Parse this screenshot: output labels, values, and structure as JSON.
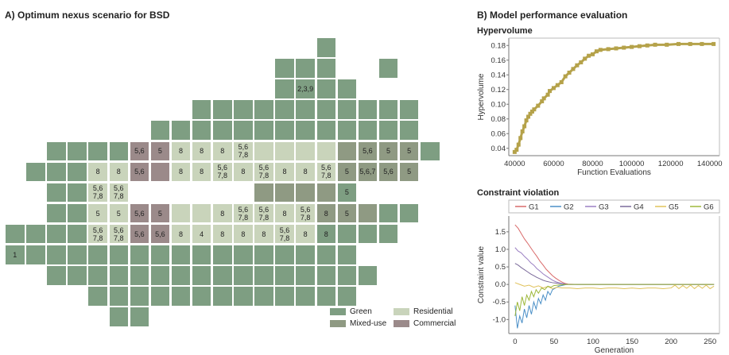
{
  "panel_a": {
    "title": "A) Optimum nexus scenario for BSD",
    "legend": [
      {
        "key": "G",
        "label": "Green",
        "color": "#7e9e82"
      },
      {
        "key": "R",
        "label": "Residential",
        "color": "#c9d4bb"
      },
      {
        "key": "M",
        "label": "Mixed-use",
        "color": "#8f9a83"
      },
      {
        "key": "C",
        "label": "Commercial",
        "color": "#9b8a8a"
      }
    ],
    "map_rows": [
      "...............G....",
      ".............GGG..G.",
      ".............GGGG...",
      ".........GGGGGGGGGGG",
      ".......GGGGGGGGGGGGG",
      "..GGGGCCRRRRRRRRMMMMG",
      ".GGGRRCCRRRRRRRRMMMM.",
      "..GGRR......MMMMG....",
      "..GGRRCCRRRRRRRMMMGG.",
      "GGGGRRCCRRRRRRRGGGG..",
      "GGGGGGGGGGGGGGGGG....",
      "..GGGGGGGGGGGGGGGG...",
      "....GGGGGGGGGGGGG....",
      ".....GG.............."
    ],
    "labels": [
      {
        "r": 2,
        "c": 14,
        "t": "2,3,9"
      },
      {
        "r": 5,
        "c": 6,
        "t": "5,6"
      },
      {
        "r": 5,
        "c": 7,
        "t": "5"
      },
      {
        "r": 5,
        "c": 8,
        "t": "8"
      },
      {
        "r": 5,
        "c": 9,
        "t": "8"
      },
      {
        "r": 5,
        "c": 10,
        "t": "8"
      },
      {
        "r": 5,
        "c": 11,
        "t": "5,6\n7,8"
      },
      {
        "r": 5,
        "c": 17,
        "t": "5,6"
      },
      {
        "r": 5,
        "c": 18,
        "t": "5"
      },
      {
        "r": 5,
        "c": 19,
        "t": "5"
      },
      {
        "r": 6,
        "c": 4,
        "t": "8"
      },
      {
        "r": 6,
        "c": 5,
        "t": "8"
      },
      {
        "r": 6,
        "c": 6,
        "t": "5,6"
      },
      {
        "r": 6,
        "c": 8,
        "t": "8"
      },
      {
        "r": 6,
        "c": 9,
        "t": "8"
      },
      {
        "r": 6,
        "c": 10,
        "t": "5,6\n7,8"
      },
      {
        "r": 6,
        "c": 11,
        "t": "8"
      },
      {
        "r": 6,
        "c": 12,
        "t": "5,6\n7,8"
      },
      {
        "r": 6,
        "c": 13,
        "t": "8"
      },
      {
        "r": 6,
        "c": 14,
        "t": "8"
      },
      {
        "r": 6,
        "c": 15,
        "t": "5,6\n7,8"
      },
      {
        "r": 6,
        "c": 16,
        "t": "5"
      },
      {
        "r": 6,
        "c": 17,
        "t": "5,6,7"
      },
      {
        "r": 6,
        "c": 18,
        "t": "5,6"
      },
      {
        "r": 6,
        "c": 19,
        "t": "5"
      },
      {
        "r": 7,
        "c": 4,
        "t": "5,6\n7,8"
      },
      {
        "r": 7,
        "c": 5,
        "t": "5,6\n7,8"
      },
      {
        "r": 7,
        "c": 16,
        "t": "5"
      },
      {
        "r": 7,
        "c": 17,
        "t": "5,6"
      },
      {
        "r": 7,
        "c": 18,
        "t": "5"
      },
      {
        "r": 8,
        "c": 4,
        "t": "5"
      },
      {
        "r": 8,
        "c": 5,
        "t": "5"
      },
      {
        "r": 8,
        "c": 6,
        "t": "5,6"
      },
      {
        "r": 8,
        "c": 7,
        "t": "5"
      },
      {
        "r": 8,
        "c": 10,
        "t": "8"
      },
      {
        "r": 8,
        "c": 11,
        "t": "5,6\n7,8"
      },
      {
        "r": 8,
        "c": 12,
        "t": "5,6\n7,8"
      },
      {
        "r": 8,
        "c": 13,
        "t": "8"
      },
      {
        "r": 8,
        "c": 14,
        "t": "5,6\n7,8"
      },
      {
        "r": 8,
        "c": 15,
        "t": "8"
      },
      {
        "r": 8,
        "c": 16,
        "t": "5"
      },
      {
        "r": 9,
        "c": 4,
        "t": "5,6\n7,8"
      },
      {
        "r": 9,
        "c": 5,
        "t": "5,6\n7,8"
      },
      {
        "r": 9,
        "c": 6,
        "t": "5,6"
      },
      {
        "r": 9,
        "c": 7,
        "t": "5,6"
      },
      {
        "r": 9,
        "c": 8,
        "t": "8"
      },
      {
        "r": 9,
        "c": 9,
        "t": "4"
      },
      {
        "r": 9,
        "c": 10,
        "t": "8"
      },
      {
        "r": 9,
        "c": 11,
        "t": "8"
      },
      {
        "r": 9,
        "c": 12,
        "t": "8"
      },
      {
        "r": 9,
        "c": 13,
        "t": "5,6\n7,8"
      },
      {
        "r": 9,
        "c": 14,
        "t": "8"
      },
      {
        "r": 9,
        "c": 15,
        "t": "8"
      },
      {
        "r": 10,
        "c": 0,
        "t": "1"
      }
    ]
  },
  "panel_b": {
    "title": "B) Model performance evaluation"
  },
  "chart_data": [
    {
      "type": "scatter",
      "title": "Hypervolume",
      "xlabel": "Function Evaluations",
      "ylabel": "Hypervolume",
      "xlim": [
        37000,
        145000
      ],
      "ylim": [
        0.03,
        0.19
      ],
      "xticks": [
        40000,
        60000,
        80000,
        100000,
        120000,
        140000
      ],
      "yticks": [
        0.04,
        0.06,
        0.08,
        0.1,
        0.12,
        0.14,
        0.16,
        0.18
      ],
      "color": "#b5a24a",
      "series": [
        {
          "points": [
            [
              40000,
              0.035
            ],
            [
              41000,
              0.038
            ],
            [
              42000,
              0.045
            ],
            [
              43000,
              0.054
            ],
            [
              44000,
              0.063
            ],
            [
              45000,
              0.07
            ],
            [
              46000,
              0.078
            ],
            [
              47000,
              0.083
            ],
            [
              48000,
              0.087
            ],
            [
              49000,
              0.09
            ],
            [
              50000,
              0.093
            ],
            [
              52000,
              0.098
            ],
            [
              54000,
              0.104
            ],
            [
              55000,
              0.108
            ],
            [
              57000,
              0.113
            ],
            [
              58000,
              0.118
            ],
            [
              60000,
              0.122
            ],
            [
              62000,
              0.126
            ],
            [
              64000,
              0.13
            ],
            [
              66000,
              0.138
            ],
            [
              68000,
              0.143
            ],
            [
              70000,
              0.148
            ],
            [
              72000,
              0.153
            ],
            [
              74000,
              0.157
            ],
            [
              76000,
              0.162
            ],
            [
              78000,
              0.166
            ],
            [
              80000,
              0.168
            ],
            [
              82000,
              0.172
            ],
            [
              84000,
              0.174
            ],
            [
              88000,
              0.175
            ],
            [
              92000,
              0.176
            ],
            [
              96000,
              0.177
            ],
            [
              100000,
              0.178
            ],
            [
              104000,
              0.179
            ],
            [
              108000,
              0.18
            ],
            [
              112000,
              0.181
            ],
            [
              118000,
              0.181
            ],
            [
              124000,
              0.182
            ],
            [
              130000,
              0.182
            ],
            [
              136000,
              0.182
            ],
            [
              142000,
              0.182
            ]
          ]
        }
      ]
    },
    {
      "type": "line",
      "title": "Constraint violation",
      "xlabel": "Generation",
      "ylabel": "Constraint value",
      "xlim": [
        -8,
        262
      ],
      "ylim": [
        -1.4,
        1.95
      ],
      "xticks": [
        0,
        50,
        100,
        150,
        200,
        250
      ],
      "yticks": [
        -1.0,
        -0.5,
        0.0,
        0.5,
        1.0,
        1.5
      ],
      "legend_position": "top",
      "series": [
        {
          "name": "G1",
          "color": "#d96a6a",
          "x": [
            0,
            4,
            8,
            12,
            16,
            20,
            24,
            28,
            32,
            36,
            40,
            44,
            48,
            52,
            56,
            60,
            64,
            68,
            80,
            120,
            160,
            200,
            255
          ],
          "y": [
            1.7,
            1.6,
            1.45,
            1.3,
            1.18,
            1.05,
            0.92,
            0.8,
            0.66,
            0.55,
            0.43,
            0.34,
            0.25,
            0.18,
            0.12,
            0.07,
            0.03,
            0.01,
            0.0,
            0.0,
            0.0,
            0.0,
            0.0
          ]
        },
        {
          "name": "G2",
          "color": "#4a8fc7",
          "x": [
            0,
            3,
            6,
            9,
            12,
            15,
            18,
            21,
            24,
            27,
            30,
            33,
            36,
            39,
            42,
            45,
            48,
            52,
            56,
            60,
            66,
            80,
            120,
            160,
            200,
            255
          ],
          "y": [
            -0.6,
            -1.25,
            -0.9,
            -1.1,
            -0.7,
            -0.95,
            -0.6,
            -0.85,
            -0.5,
            -0.7,
            -0.4,
            -0.55,
            -0.3,
            -0.45,
            -0.2,
            -0.3,
            -0.15,
            -0.1,
            -0.05,
            -0.03,
            0.0,
            0.0,
            0.0,
            0.0,
            0.0,
            0.0
          ]
        },
        {
          "name": "G3",
          "color": "#9a7fc2",
          "x": [
            0,
            4,
            8,
            12,
            16,
            20,
            24,
            28,
            32,
            36,
            40,
            44,
            48,
            52,
            56,
            60,
            66,
            80,
            120,
            160,
            200,
            255
          ],
          "y": [
            1.05,
            0.95,
            0.9,
            0.8,
            0.72,
            0.62,
            0.55,
            0.45,
            0.38,
            0.3,
            0.24,
            0.18,
            0.12,
            0.08,
            0.05,
            0.03,
            0.0,
            0.0,
            0.0,
            0.0,
            0.0,
            0.0
          ]
        },
        {
          "name": "G4",
          "color": "#7b6a9a",
          "x": [
            0,
            4,
            8,
            12,
            16,
            20,
            24,
            28,
            32,
            36,
            40,
            44,
            48,
            52,
            56,
            60,
            64,
            70,
            80,
            120,
            160,
            200,
            255
          ],
          "y": [
            0.6,
            0.55,
            0.48,
            0.42,
            0.36,
            0.3,
            0.25,
            0.2,
            0.16,
            0.12,
            0.09,
            0.07,
            0.05,
            0.04,
            0.03,
            0.02,
            0.01,
            0.0,
            0.0,
            0.0,
            0.0,
            0.0,
            0.0
          ]
        },
        {
          "name": "G5",
          "color": "#e0c25a",
          "x": [
            0,
            6,
            12,
            18,
            24,
            30,
            36,
            42,
            48,
            54,
            60,
            70,
            80,
            90,
            100,
            110,
            120,
            130,
            140,
            150,
            160,
            170,
            180,
            190,
            200,
            205,
            210,
            215,
            220,
            225,
            230,
            235,
            240,
            245,
            250,
            255
          ],
          "y": [
            0.05,
            0.0,
            -0.05,
            -0.02,
            -0.08,
            -0.04,
            -0.1,
            -0.06,
            -0.12,
            -0.08,
            -0.1,
            -0.1,
            -0.12,
            -0.1,
            -0.1,
            -0.12,
            -0.1,
            -0.1,
            -0.12,
            -0.1,
            -0.12,
            -0.1,
            -0.1,
            -0.12,
            -0.1,
            -0.02,
            -0.12,
            -0.03,
            -0.11,
            -0.02,
            -0.12,
            -0.03,
            -0.11,
            -0.02,
            -0.12,
            -0.05
          ]
        },
        {
          "name": "G6",
          "color": "#9db83a",
          "x": [
            0,
            3,
            6,
            9,
            12,
            15,
            18,
            21,
            24,
            27,
            30,
            34,
            38,
            42,
            46,
            50,
            55,
            60,
            66,
            80,
            120,
            160,
            200,
            255
          ],
          "y": [
            -0.9,
            -0.5,
            -0.75,
            -0.35,
            -0.6,
            -0.3,
            -0.45,
            -0.2,
            -0.35,
            -0.15,
            -0.25,
            -0.1,
            -0.15,
            -0.05,
            -0.08,
            -0.03,
            -0.02,
            -0.01,
            0.0,
            0.0,
            0.0,
            0.0,
            0.0,
            0.0
          ]
        }
      ]
    }
  ]
}
